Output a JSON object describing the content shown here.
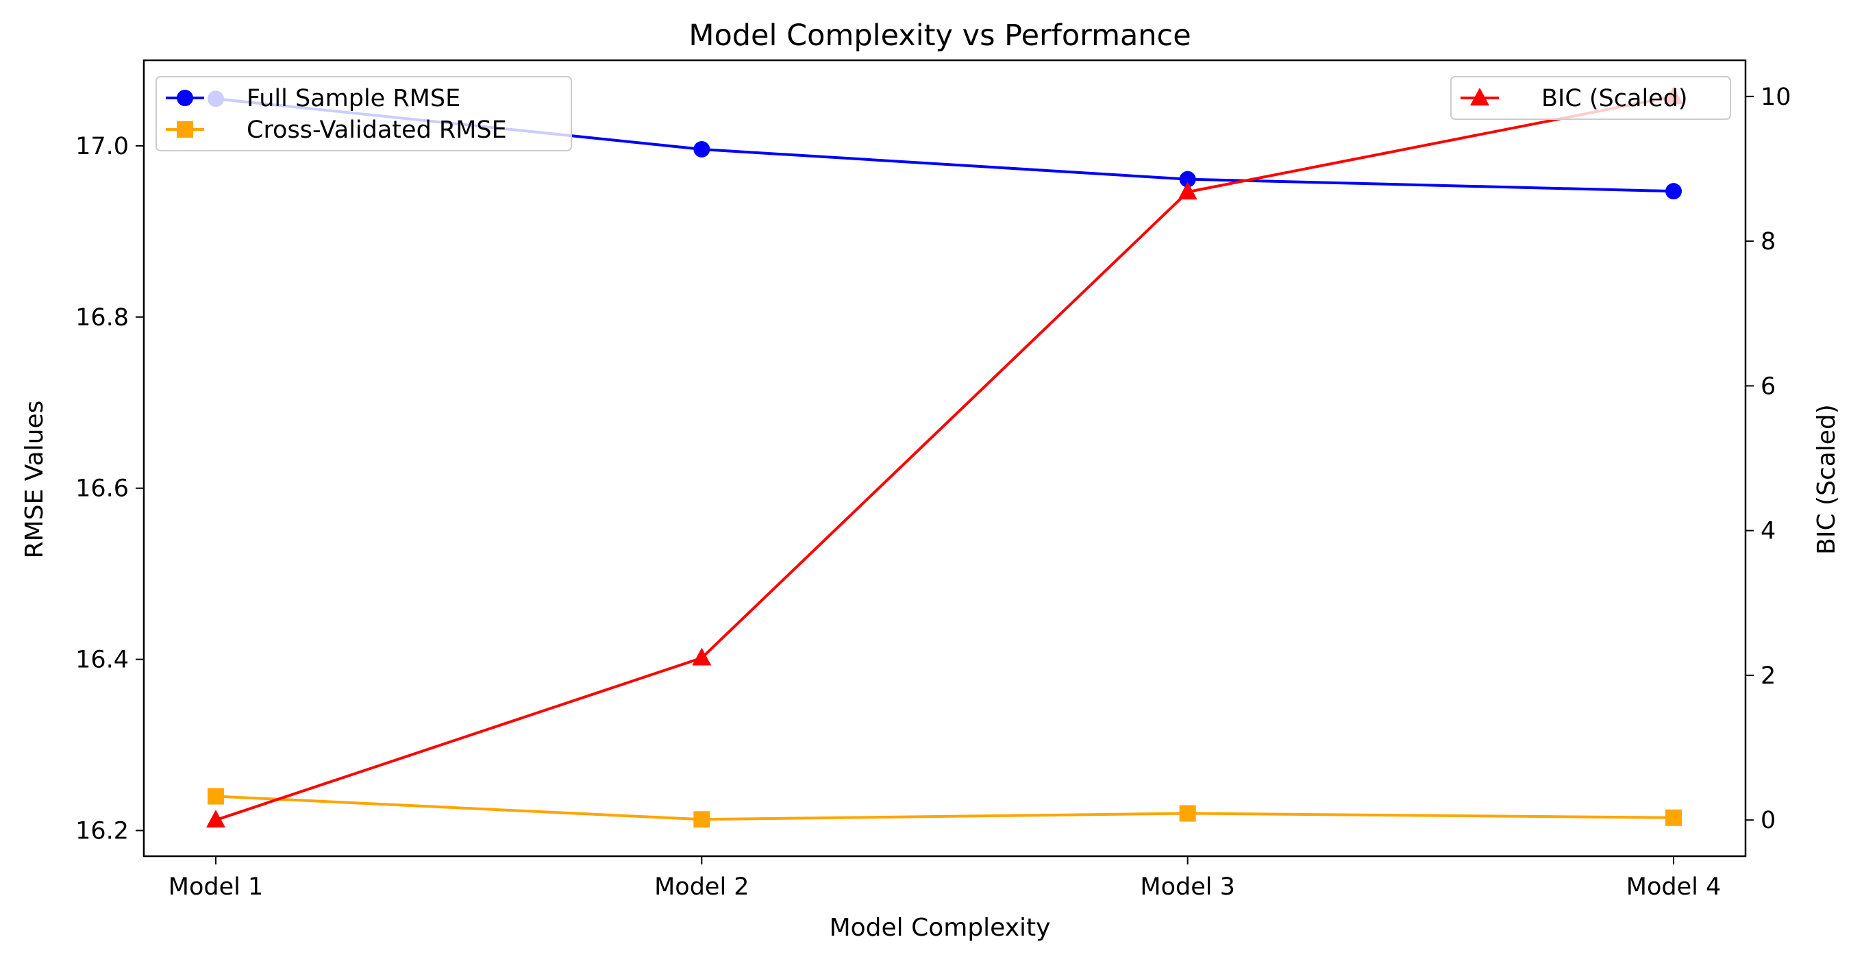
{
  "chart_data": {
    "type": "line",
    "title": "Model Complexity vs Performance",
    "xlabel": "Model Complexity",
    "ylabel_left": "RMSE Values",
    "ylabel_right": "BIC (Scaled)",
    "categories": [
      "Model 1",
      "Model 2",
      "Model 3",
      "Model 4"
    ],
    "left_axis": {
      "ylim": [
        16.17,
        17.1
      ],
      "ticks": [
        16.2,
        16.4,
        16.6,
        16.8,
        17.0
      ],
      "tick_labels": [
        "16.2",
        "16.4",
        "16.6",
        "16.8",
        "17.0"
      ]
    },
    "right_axis": {
      "ylim": [
        -0.5,
        10.5
      ],
      "ticks": [
        0,
        2,
        4,
        6,
        8,
        10
      ],
      "tick_labels": [
        "0",
        "2",
        "4",
        "6",
        "8",
        "10"
      ]
    },
    "series": [
      {
        "name": "Full Sample RMSE",
        "axis": "left",
        "color": "#0000ff",
        "marker": "circle",
        "values": [
          17.055,
          16.996,
          16.961,
          16.947
        ]
      },
      {
        "name": "Cross-Validated RMSE",
        "axis": "left",
        "color": "#ffa500",
        "marker": "square",
        "values": [
          16.24,
          16.213,
          16.22,
          16.215
        ]
      },
      {
        "name": "BIC (Scaled)",
        "axis": "right",
        "color": "#ff0000",
        "marker": "triangle",
        "values": [
          0.0,
          2.24,
          8.68,
          10.0
        ]
      }
    ],
    "legends": [
      {
        "placement": "top-left",
        "entries": [
          "Full Sample RMSE",
          "Cross-Validated RMSE"
        ]
      },
      {
        "placement": "top-right",
        "entries": [
          "BIC (Scaled)"
        ]
      }
    ],
    "grid": false
  }
}
